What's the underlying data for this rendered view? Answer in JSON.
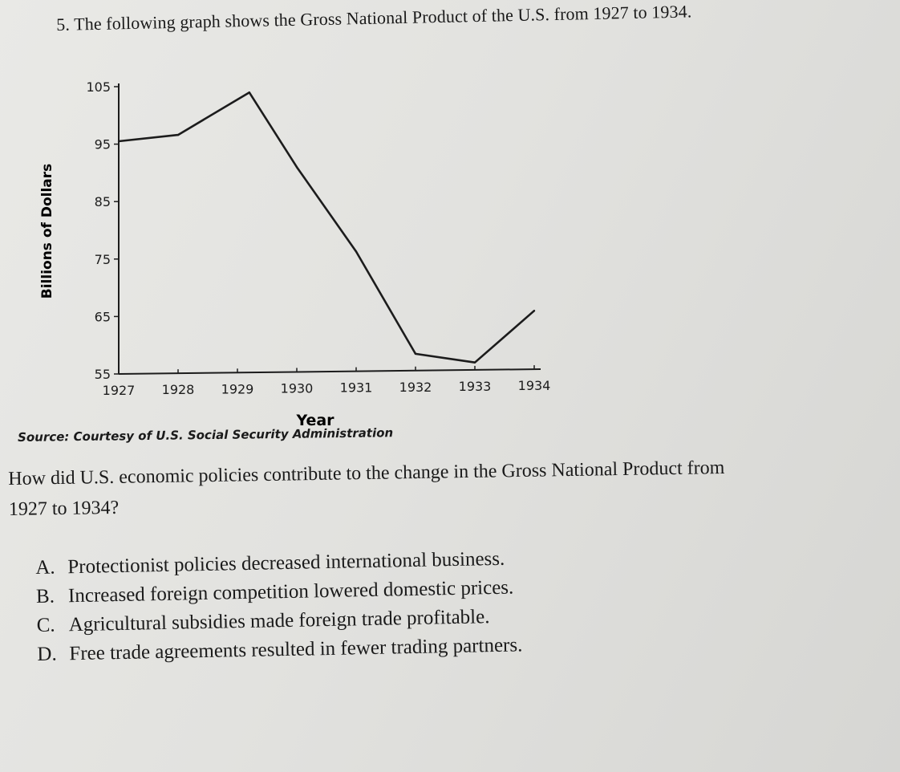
{
  "question": {
    "title": "5. The following graph shows the Gross National Product of the U.S. from 1927 to 1934.",
    "source": "Source: Courtesy of U.S. Social Security Administration",
    "prompt_line1": "How did U.S. economic policies contribute to the change in the Gross National Product from",
    "prompt_line2": "1927 to 1934?",
    "choices": [
      {
        "letter": "A.",
        "text": "Protectionist policies decreased international business."
      },
      {
        "letter": "B.",
        "text": "Increased foreign competition lowered domestic prices."
      },
      {
        "letter": "C.",
        "text": "Agricultural subsidies made foreign trade profitable."
      },
      {
        "letter": "D.",
        "text": "Free trade agreements resulted in fewer trading partners."
      }
    ]
  },
  "chart_data": {
    "type": "line",
    "xlabel": "Year",
    "ylabel": "Billions of Dollars",
    "x": [
      "1927",
      "1928",
      "1929",
      "1930",
      "1931",
      "1932",
      "1933",
      "1934"
    ],
    "y_ticks": [
      55,
      65,
      75,
      85,
      95,
      105
    ],
    "ylim": [
      55,
      105
    ],
    "series": [
      {
        "values": [
          {
            "x": 1927.0,
            "y": 95.5
          },
          {
            "x": 1928.0,
            "y": 96.6
          },
          {
            "x": 1929.2,
            "y": 104.0
          },
          {
            "x": 1930.0,
            "y": 91.0
          },
          {
            "x": 1931.0,
            "y": 76.3
          },
          {
            "x": 1932.0,
            "y": 58.5
          },
          {
            "x": 1933.0,
            "y": 57.0
          },
          {
            "x": 1934.0,
            "y": 66.0
          }
        ]
      }
    ],
    "grid": false,
    "line_color": "#1c1c1c"
  }
}
